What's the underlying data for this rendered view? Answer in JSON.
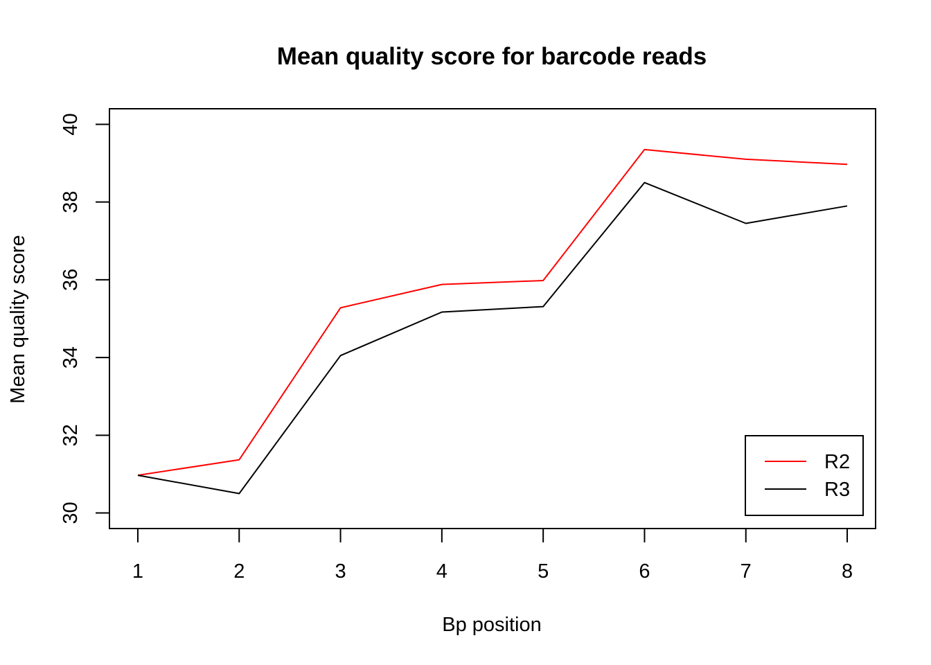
{
  "chart_data": {
    "type": "line",
    "title": "Mean quality score for barcode reads",
    "xlabel": "Bp position",
    "ylabel": "Mean quality score",
    "x": [
      1,
      2,
      3,
      4,
      5,
      6,
      7,
      8
    ],
    "xticks": [
      "1",
      "2",
      "3",
      "4",
      "5",
      "6",
      "7",
      "8"
    ],
    "yticks": [
      "30",
      "32",
      "34",
      "36",
      "38",
      "40"
    ],
    "xlim": [
      0.72,
      8.28
    ],
    "ylim": [
      29.6,
      40.4
    ],
    "grid": false,
    "legend_position": "bottom-right",
    "series": [
      {
        "name": "R2",
        "color": "#ff0000",
        "values": [
          30.97,
          31.37,
          35.28,
          35.88,
          35.98,
          39.35,
          39.1,
          38.97
        ]
      },
      {
        "name": "R3",
        "color": "#000000",
        "values": [
          30.97,
          30.5,
          34.05,
          35.17,
          35.31,
          38.5,
          37.45,
          37.9
        ]
      }
    ]
  }
}
